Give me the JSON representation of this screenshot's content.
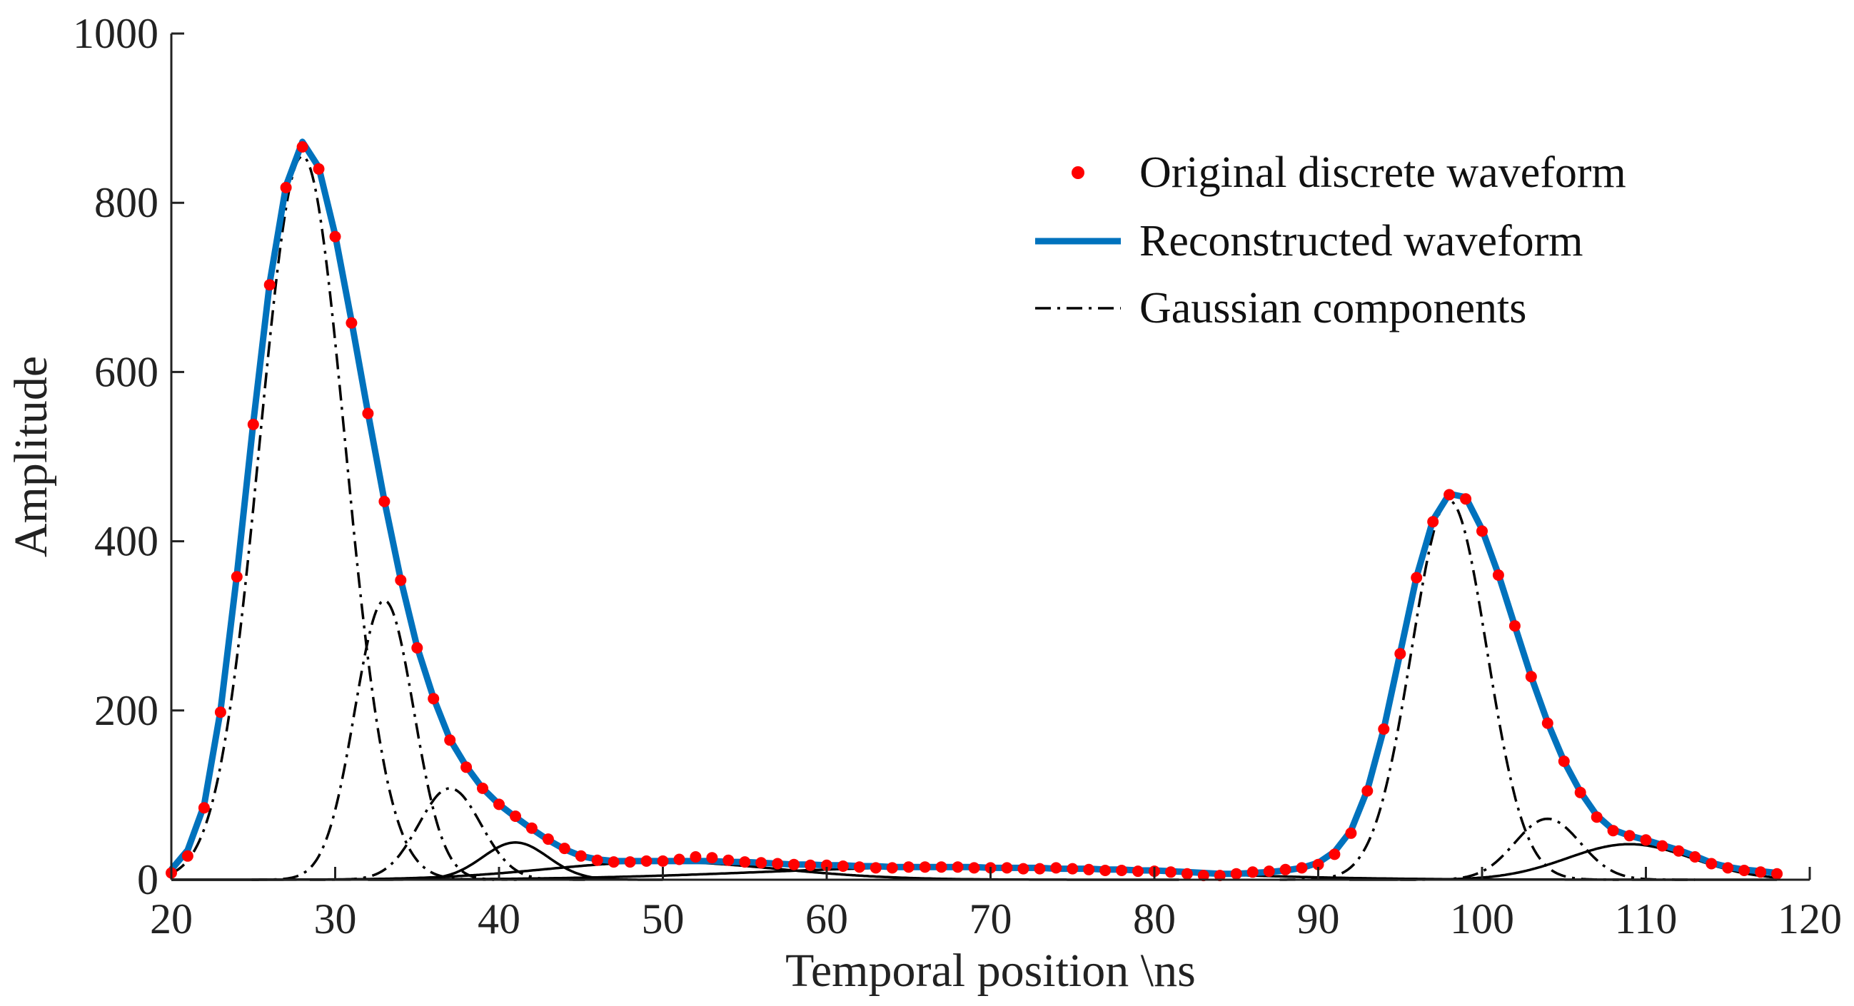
{
  "chart_data": {
    "type": "line",
    "title": "",
    "xlabel": "Temporal position \\ns",
    "ylabel": "Amplitude",
    "xlim": [
      20,
      120
    ],
    "ylim": [
      0,
      1000
    ],
    "xticks": [
      20,
      30,
      40,
      50,
      60,
      70,
      80,
      90,
      100,
      110,
      120
    ],
    "yticks": [
      0,
      200,
      400,
      600,
      800,
      1000
    ],
    "grid": false,
    "legend_position": "top-right",
    "series": [
      {
        "name": "Original discrete waveform",
        "kind": "markers",
        "color": "#ff0000",
        "x": [
          20,
          21,
          22,
          23,
          24,
          25,
          26,
          27,
          28,
          29,
          30,
          31,
          32,
          33,
          34,
          35,
          36,
          37,
          38,
          39,
          40,
          41,
          42,
          43,
          44,
          45,
          46,
          47,
          48,
          49,
          50,
          51,
          52,
          53,
          54,
          55,
          56,
          57,
          58,
          59,
          60,
          61,
          62,
          63,
          64,
          65,
          66,
          67,
          68,
          69,
          70,
          71,
          72,
          73,
          74,
          75,
          76,
          77,
          78,
          79,
          80,
          81,
          82,
          83,
          84,
          85,
          86,
          87,
          88,
          89,
          90,
          91,
          92,
          93,
          94,
          95,
          96,
          97,
          98,
          99,
          100,
          101,
          102,
          103,
          104,
          105,
          106,
          107,
          108,
          109,
          110,
          111,
          112,
          113,
          114,
          115,
          116,
          117,
          118
        ],
        "values": [
          8,
          28,
          85,
          198,
          358,
          538,
          703,
          818,
          866,
          840,
          760,
          658,
          551,
          447,
          354,
          274,
          214,
          165,
          133,
          108,
          89,
          75,
          61,
          48,
          37,
          28,
          23,
          21,
          21,
          22,
          22,
          24,
          27,
          26,
          23,
          21,
          20,
          19,
          18,
          17,
          17,
          16,
          15,
          14,
          14,
          15,
          15,
          15,
          15,
          14,
          14,
          14,
          13,
          13,
          14,
          13,
          12,
          11,
          11,
          10,
          10,
          9,
          7,
          5,
          5,
          7,
          9,
          10,
          12,
          14,
          18,
          30,
          55,
          105,
          178,
          267,
          357,
          423,
          455,
          450,
          412,
          360,
          300,
          240,
          185,
          140,
          103,
          74,
          58,
          52,
          47,
          40,
          34,
          27,
          19,
          14,
          11,
          9,
          7
        ]
      },
      {
        "name": "Reconstructed waveform",
        "kind": "line",
        "color": "#0072bd",
        "x": [
          20,
          21,
          22,
          23,
          24,
          25,
          26,
          27,
          28,
          29,
          30,
          31,
          32,
          33,
          34,
          35,
          36,
          37,
          38,
          39,
          40,
          41,
          42,
          43,
          44,
          45,
          46,
          47,
          48,
          49,
          50,
          51,
          52,
          53,
          54,
          55,
          56,
          57,
          58,
          59,
          60,
          61,
          62,
          63,
          64,
          65,
          66,
          67,
          68,
          69,
          70,
          71,
          72,
          73,
          74,
          75,
          76,
          77,
          78,
          79,
          80,
          81,
          82,
          83,
          84,
          85,
          86,
          87,
          88,
          89,
          90,
          91,
          92,
          93,
          94,
          95,
          96,
          97,
          98,
          99,
          100,
          101,
          102,
          103,
          104,
          105,
          106,
          107,
          108,
          109,
          110,
          111,
          112,
          113,
          114,
          115,
          116,
          117,
          118
        ],
        "values": [
          12,
          35,
          88,
          200,
          360,
          540,
          705,
          820,
          872,
          842,
          762,
          660,
          552,
          448,
          355,
          275,
          215,
          166,
          134,
          108,
          89,
          74,
          60,
          47,
          36,
          28,
          24,
          22,
          22,
          22,
          22,
          22,
          22,
          22,
          21,
          21,
          20,
          19,
          18,
          18,
          17,
          17,
          16,
          16,
          15,
          15,
          15,
          15,
          15,
          15,
          14,
          14,
          14,
          14,
          13,
          13,
          13,
          12,
          12,
          11,
          11,
          10,
          9,
          8,
          7,
          7,
          8,
          9,
          11,
          14,
          20,
          33,
          58,
          106,
          178,
          268,
          358,
          425,
          456,
          452,
          414,
          361,
          300,
          240,
          186,
          140,
          104,
          76,
          59,
          52,
          47,
          41,
          35,
          28,
          20,
          15,
          12,
          10,
          8
        ]
      },
      {
        "name": "Gaussian components",
        "kind": "components",
        "color": "#000000",
        "components": [
          {
            "amplitude": 855,
            "center": 28.0,
            "sigma": 2.6,
            "style": "dashdot"
          },
          {
            "amplitude": 330,
            "center": 33.0,
            "sigma": 1.8,
            "style": "dashdot"
          },
          {
            "amplitude": 108,
            "center": 37.0,
            "sigma": 1.9,
            "style": "dashdot"
          },
          {
            "amplitude": 44,
            "center": 41.0,
            "sigma": 2.0,
            "style": "solid"
          },
          {
            "amplitude": 21,
            "center": 50.0,
            "sigma": 7.0,
            "style": "solid"
          },
          {
            "amplitude": 15,
            "center": 68.0,
            "sigma": 12.0,
            "style": "solid"
          },
          {
            "amplitude": 448,
            "center": 98.0,
            "sigma": 2.3,
            "style": "dashdot"
          },
          {
            "amplitude": 72,
            "center": 104.0,
            "sigma": 2.0,
            "style": "dashdot"
          },
          {
            "amplitude": 42,
            "center": 109.0,
            "sigma": 3.8,
            "style": "solid"
          }
        ]
      }
    ]
  }
}
